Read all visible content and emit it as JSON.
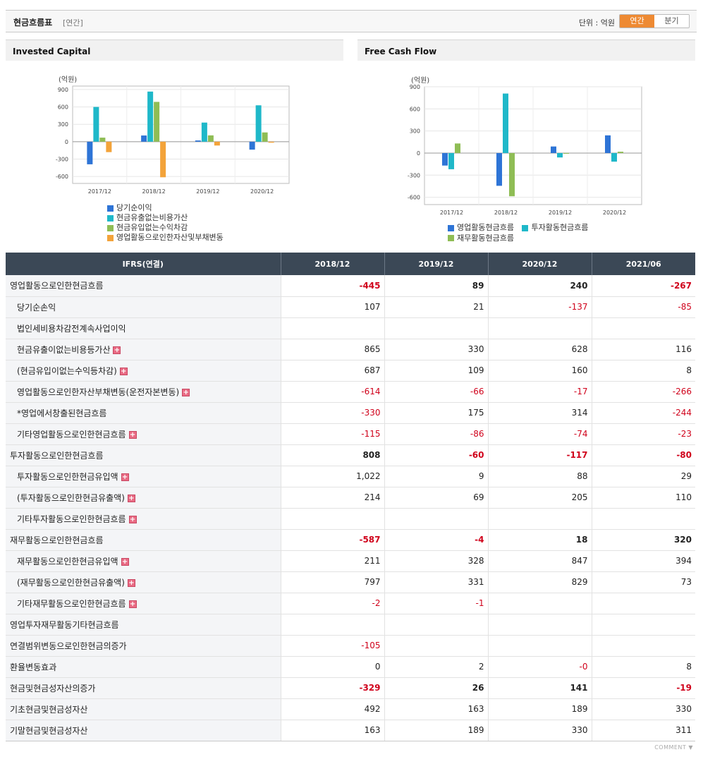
{
  "header": {
    "title": "현금흐름표",
    "subtitle": "[연간]",
    "unit": "단위 : 억원",
    "toggle": [
      "연간",
      "분기"
    ]
  },
  "charts": {
    "invested_capital": {
      "title": "Invested Capital",
      "unit_label": "(억원)",
      "legend": [
        "당기순이익",
        "현금유출없는비용가산",
        "현금유입없는수익차감",
        "영업활동으로인한자산및부채변동"
      ]
    },
    "free_cash_flow": {
      "title": "Free Cash Flow",
      "unit_label": "(억원)",
      "legend": [
        "영업활동현금흐름",
        "투자활동현금흐름",
        "재무활동현금흐름"
      ]
    }
  },
  "chart_data": [
    {
      "type": "bar",
      "title": "Invested Capital",
      "ylabel": "(억원)",
      "categories": [
        "2017/12",
        "2018/12",
        "2019/12",
        "2020/12"
      ],
      "ylim": [
        -720,
        960
      ],
      "yticks": [
        900,
        600,
        300,
        0,
        -300,
        -600
      ],
      "series": [
        {
          "name": "당기순이익",
          "color": "#2e74d6",
          "values": [
            -390,
            107,
            21,
            -137
          ]
        },
        {
          "name": "현금유출없는비용가산",
          "color": "#1fb8c9",
          "values": [
            600,
            865,
            330,
            628
          ]
        },
        {
          "name": "현금유입없는수익차감",
          "color": "#8fbd55",
          "values": [
            70,
            687,
            109,
            160
          ]
        },
        {
          "name": "영업활동으로인한자산및부채변동",
          "color": "#f3a33a",
          "values": [
            -180,
            -614,
            -66,
            -17
          ]
        }
      ]
    },
    {
      "type": "bar",
      "title": "Free Cash Flow",
      "ylabel": "(억원)",
      "categories": [
        "2017/12",
        "2018/12",
        "2019/12",
        "2020/12"
      ],
      "ylim": [
        -700,
        900
      ],
      "yticks": [
        900,
        600,
        300,
        0,
        -300,
        -600
      ],
      "series": [
        {
          "name": "영업활동현금흐름",
          "color": "#2e74d6",
          "values": [
            -170,
            -445,
            89,
            240
          ]
        },
        {
          "name": "투자활동현금흐름",
          "color": "#1fb8c9",
          "values": [
            -220,
            808,
            -60,
            -117
          ]
        },
        {
          "name": "재무활동현금흐름",
          "color": "#8fbd55",
          "values": [
            130,
            -587,
            -4,
            18
          ]
        }
      ]
    }
  ],
  "table": {
    "corner": "IFRS(연결)",
    "columns": [
      "2018/12",
      "2019/12",
      "2020/12",
      "2021/06"
    ],
    "rows": [
      {
        "label": "영업활동으로인한현금흐름",
        "level": 0,
        "bold": true,
        "sep": false,
        "plus": false,
        "values": [
          "-445",
          "89",
          "240",
          "-267"
        ]
      },
      {
        "label": "당기순손익",
        "level": 1,
        "bold": false,
        "sep": false,
        "plus": false,
        "values": [
          "107",
          "21",
          "-137",
          "-85"
        ]
      },
      {
        "label": "법인세비용차감전계속사업이익",
        "level": 1,
        "bold": false,
        "sep": false,
        "plus": false,
        "values": [
          "",
          "",
          "",
          ""
        ]
      },
      {
        "label": "현금유출이없는비용등가산",
        "level": 1,
        "bold": false,
        "sep": false,
        "plus": true,
        "values": [
          "865",
          "330",
          "628",
          "116"
        ]
      },
      {
        "label": "(현금유입이없는수익등차감)",
        "level": 1,
        "bold": false,
        "sep": false,
        "plus": true,
        "values": [
          "687",
          "109",
          "160",
          "8"
        ]
      },
      {
        "label": "영업활동으로인한자산부채변동(운전자본변동)",
        "level": 1,
        "bold": false,
        "sep": false,
        "plus": true,
        "values": [
          "-614",
          "-66",
          "-17",
          "-266"
        ]
      },
      {
        "label": "*영업에서창출된현금흐름",
        "level": 1,
        "bold": false,
        "sep": false,
        "plus": false,
        "values": [
          "-330",
          "175",
          "314",
          "-244"
        ]
      },
      {
        "label": "기타영업활동으로인한현금흐름",
        "level": 1,
        "bold": false,
        "sep": false,
        "plus": true,
        "values": [
          "-115",
          "-86",
          "-74",
          "-23"
        ]
      },
      {
        "label": "투자활동으로인한현금흐름",
        "level": 0,
        "bold": true,
        "sep": true,
        "plus": false,
        "values": [
          "808",
          "-60",
          "-117",
          "-80"
        ]
      },
      {
        "label": "투자활동으로인한현금유입액",
        "level": 1,
        "bold": false,
        "sep": false,
        "plus": true,
        "values": [
          "1,022",
          "9",
          "88",
          "29"
        ]
      },
      {
        "label": "(투자활동으로인한현금유출액)",
        "level": 1,
        "bold": false,
        "sep": false,
        "plus": true,
        "values": [
          "214",
          "69",
          "205",
          "110"
        ]
      },
      {
        "label": "기타투자활동으로인한현금흐름",
        "level": 1,
        "bold": false,
        "sep": false,
        "plus": true,
        "values": [
          "",
          "",
          "",
          ""
        ]
      },
      {
        "label": "재무활동으로인한현금흐름",
        "level": 0,
        "bold": true,
        "sep": true,
        "plus": false,
        "values": [
          "-587",
          "-4",
          "18",
          "320"
        ]
      },
      {
        "label": "재무활동으로인한현금유입액",
        "level": 1,
        "bold": false,
        "sep": false,
        "plus": true,
        "values": [
          "211",
          "328",
          "847",
          "394"
        ]
      },
      {
        "label": "(재무활동으로인한현금유출액)",
        "level": 1,
        "bold": false,
        "sep": false,
        "plus": true,
        "values": [
          "797",
          "331",
          "829",
          "73"
        ]
      },
      {
        "label": "기타재무활동으로인한현금흐름",
        "level": 1,
        "bold": false,
        "sep": false,
        "plus": true,
        "values": [
          "-2",
          "-1",
          "",
          ""
        ]
      },
      {
        "label": "영업투자재무활동기타현금흐름",
        "level": 0,
        "bold": false,
        "sep": true,
        "plus": false,
        "values": [
          "",
          "",
          "",
          ""
        ]
      },
      {
        "label": "연결범위변동으로인한현금의증가",
        "level": 0,
        "bold": false,
        "sep": false,
        "plus": false,
        "values": [
          "-105",
          "",
          "",
          ""
        ]
      },
      {
        "label": "환율변동효과",
        "level": 0,
        "bold": false,
        "sep": false,
        "plus": false,
        "values": [
          "0",
          "2",
          "-0",
          "8"
        ]
      },
      {
        "label": "현금및현금성자산의증가",
        "level": 0,
        "bold": true,
        "sep": false,
        "plus": false,
        "values": [
          "-329",
          "26",
          "141",
          "-19"
        ]
      },
      {
        "label": "기초현금및현금성자산",
        "level": 0,
        "bold": false,
        "sep": false,
        "plus": false,
        "values": [
          "492",
          "163",
          "189",
          "330"
        ]
      },
      {
        "label": "기말현금및현금성자산",
        "level": 0,
        "bold": false,
        "sep": false,
        "plus": false,
        "values": [
          "163",
          "189",
          "330",
          "311"
        ]
      }
    ]
  },
  "footer": {
    "comment": "COMMENT ▼"
  }
}
